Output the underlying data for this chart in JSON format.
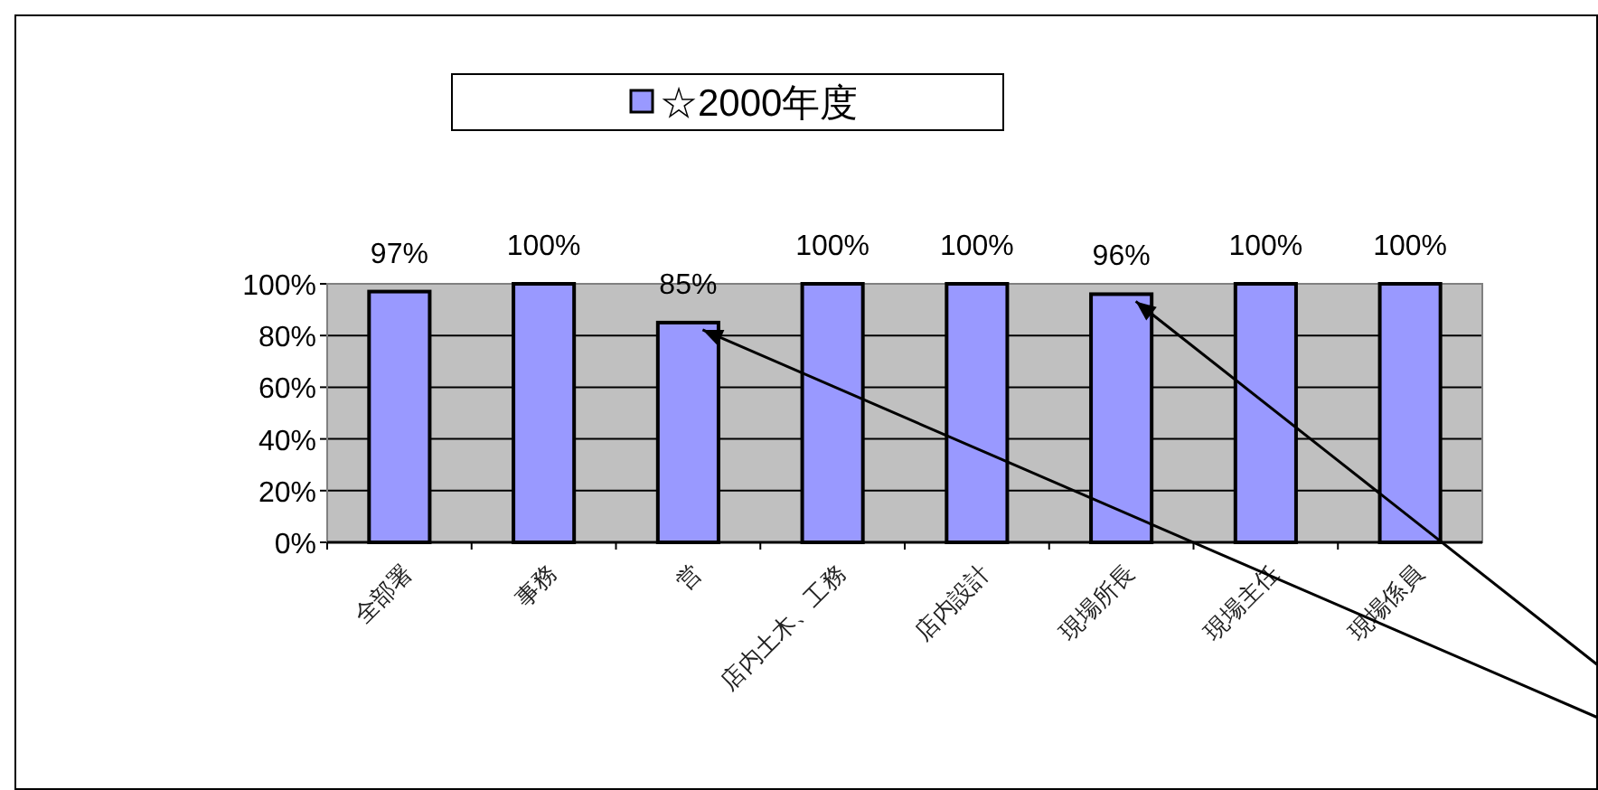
{
  "chart_data": {
    "type": "bar",
    "categories": [
      "全部署",
      "事務",
      "営",
      "店内土木、工務",
      "店内設計",
      "現場所長",
      "現場主任",
      "現場係員"
    ],
    "series": [
      {
        "name": "☆2000年度",
        "color": "#9999ff",
        "values": [
          97,
          100,
          85,
          100,
          100,
          96,
          100,
          100
        ]
      }
    ],
    "ylim": [
      0,
      100
    ],
    "yticks": [
      {
        "value": 0,
        "label": "0%"
      },
      {
        "value": 20,
        "label": "20%"
      },
      {
        "value": 40,
        "label": "40%"
      },
      {
        "value": 60,
        "label": "60%"
      },
      {
        "value": 80,
        "label": "80%"
      },
      {
        "value": 100,
        "label": "100%"
      }
    ],
    "value_labels": [
      "97%",
      "100%",
      "85%",
      "100%",
      "100%",
      "96%",
      "100%",
      "100%"
    ],
    "grid": "y",
    "legend": "top"
  }
}
